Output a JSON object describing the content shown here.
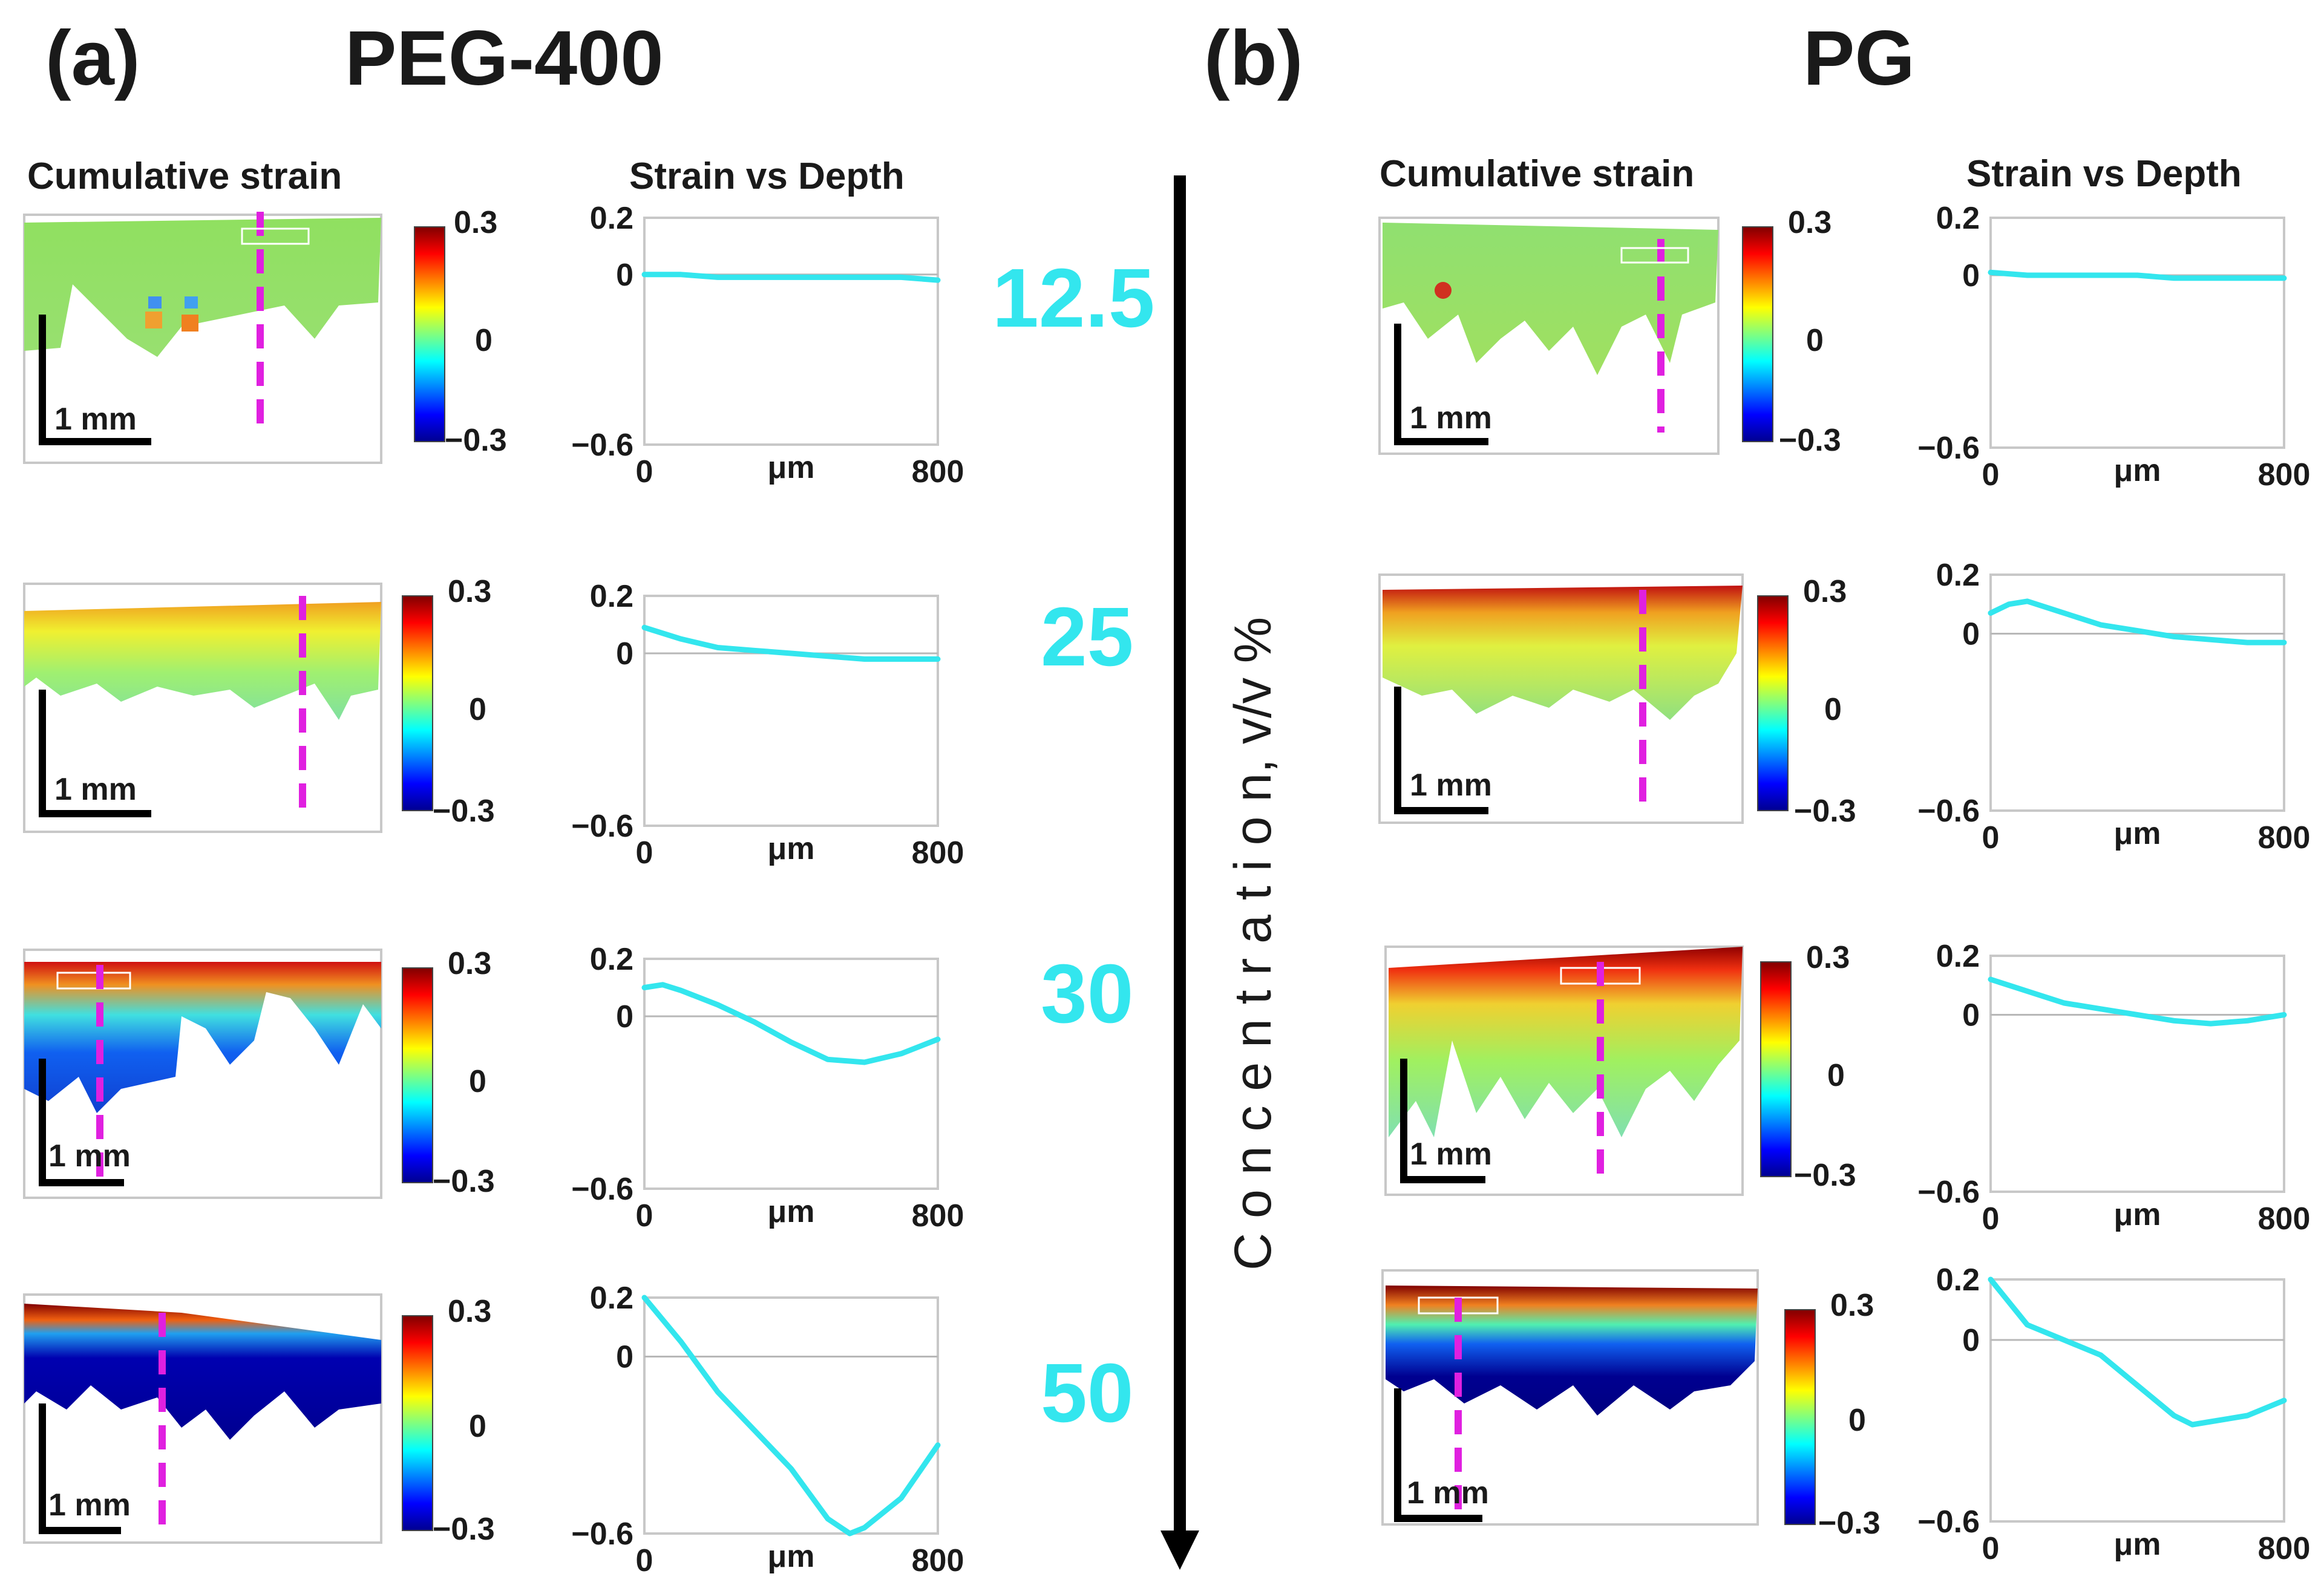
{
  "panels": [
    {
      "letter": "(a)",
      "title": "PEG-400",
      "map_header": "Cumulative strain",
      "plot_header": "Strain vs Depth"
    },
    {
      "letter": "(b)",
      "title": "PG",
      "map_header": "Cumulative strain",
      "plot_header": "Strain vs Depth"
    }
  ],
  "concentrations": [
    "12.5",
    "25",
    "30",
    "50"
  ],
  "axis_label": "C o n c e n t r a t i o n, v/v %",
  "scale_bar": "1 mm",
  "colorbar": {
    "max": "0.3",
    "mid": "0",
    "min": "−0.3"
  },
  "plot_axes": {
    "ytop": "0.2",
    "yzero": "0",
    "ybottom": "−0.6",
    "xmin": "0",
    "xunit": "μm",
    "xmax": "800"
  },
  "colors": {
    "curve": "#33e6ee",
    "marker": "#e020e0",
    "accent": "#33e6ee"
  },
  "chart_data": [
    {
      "type": "line",
      "title": "PEG-400, 12.5 v/v %: Strain vs Depth",
      "xlabel": "μm",
      "ylabel": "strain",
      "xlim": [
        0,
        800
      ],
      "ylim": [
        -0.6,
        0.2
      ],
      "x": [
        0,
        100,
        200,
        300,
        400,
        500,
        600,
        700,
        800
      ],
      "values": [
        0.0,
        0.0,
        -0.01,
        -0.01,
        -0.01,
        -0.01,
        -0.01,
        -0.01,
        -0.02
      ]
    },
    {
      "type": "line",
      "title": "PEG-400, 25 v/v %: Strain vs Depth",
      "xlabel": "μm",
      "ylabel": "strain",
      "xlim": [
        0,
        800
      ],
      "ylim": [
        -0.6,
        0.2
      ],
      "x": [
        0,
        100,
        200,
        300,
        400,
        500,
        600,
        700,
        800
      ],
      "values": [
        0.09,
        0.05,
        0.02,
        0.01,
        0.0,
        -0.01,
        -0.02,
        -0.02,
        -0.02
      ]
    },
    {
      "type": "line",
      "title": "PEG-400, 30 v/v %: Strain vs Depth",
      "xlabel": "μm",
      "ylabel": "strain",
      "xlim": [
        0,
        800
      ],
      "ylim": [
        -0.6,
        0.2
      ],
      "x": [
        0,
        50,
        100,
        200,
        300,
        400,
        500,
        600,
        700,
        800
      ],
      "values": [
        0.1,
        0.11,
        0.09,
        0.04,
        -0.02,
        -0.09,
        -0.15,
        -0.16,
        -0.13,
        -0.08
      ]
    },
    {
      "type": "line",
      "title": "PEG-400, 50 v/v %: Strain vs Depth",
      "xlabel": "μm",
      "ylabel": "strain",
      "xlim": [
        0,
        800
      ],
      "ylim": [
        -0.6,
        0.2
      ],
      "x": [
        0,
        100,
        200,
        300,
        400,
        500,
        560,
        600,
        700,
        800
      ],
      "values": [
        0.2,
        0.05,
        -0.12,
        -0.25,
        -0.38,
        -0.55,
        -0.6,
        -0.58,
        -0.48,
        -0.3
      ]
    },
    {
      "type": "line",
      "title": "PG, 12.5 v/v %: Strain vs Depth",
      "xlabel": "μm",
      "ylabel": "strain",
      "xlim": [
        0,
        800
      ],
      "ylim": [
        -0.6,
        0.2
      ],
      "x": [
        0,
        100,
        200,
        300,
        400,
        500,
        600,
        700,
        800
      ],
      "values": [
        0.01,
        0.0,
        0.0,
        0.0,
        0.0,
        -0.01,
        -0.01,
        -0.01,
        -0.01
      ]
    },
    {
      "type": "line",
      "title": "PG, 25 v/v %: Strain vs Depth",
      "xlabel": "μm",
      "ylabel": "strain",
      "xlim": [
        0,
        800
      ],
      "ylim": [
        -0.6,
        0.2
      ],
      "x": [
        0,
        50,
        100,
        200,
        300,
        400,
        500,
        600,
        700,
        800
      ],
      "values": [
        0.07,
        0.1,
        0.11,
        0.07,
        0.03,
        0.01,
        -0.01,
        -0.02,
        -0.03,
        -0.03
      ]
    },
    {
      "type": "line",
      "title": "PG, 30 v/v %: Strain vs Depth",
      "xlabel": "μm",
      "ylabel": "strain",
      "xlim": [
        0,
        800
      ],
      "ylim": [
        -0.6,
        0.2
      ],
      "x": [
        0,
        100,
        200,
        300,
        400,
        500,
        600,
        700,
        800
      ],
      "values": [
        0.12,
        0.08,
        0.04,
        0.02,
        0.0,
        -0.02,
        -0.03,
        -0.02,
        0.0
      ]
    },
    {
      "type": "line",
      "title": "PG, 50 v/v %: Strain vs Depth",
      "xlabel": "μm",
      "ylabel": "strain",
      "xlim": [
        0,
        800
      ],
      "ylim": [
        -0.6,
        0.2
      ],
      "x": [
        0,
        100,
        200,
        300,
        400,
        500,
        550,
        600,
        700,
        800
      ],
      "values": [
        0.2,
        0.05,
        0.0,
        -0.05,
        -0.15,
        -0.25,
        -0.28,
        -0.27,
        -0.25,
        -0.2
      ]
    }
  ]
}
